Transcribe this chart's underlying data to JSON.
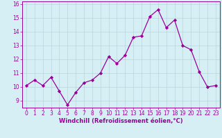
{
  "x": [
    0,
    1,
    2,
    3,
    4,
    5,
    6,
    7,
    8,
    9,
    10,
    11,
    12,
    13,
    14,
    15,
    16,
    17,
    18,
    19,
    20,
    21,
    22,
    23
  ],
  "y": [
    10.1,
    10.5,
    10.1,
    10.7,
    9.7,
    8.7,
    9.6,
    10.3,
    10.5,
    11.0,
    12.2,
    11.7,
    12.3,
    13.6,
    13.7,
    15.1,
    15.6,
    14.3,
    14.85,
    13.0,
    12.7,
    11.1,
    10.0,
    10.1
  ],
  "line_color": "#990099",
  "marker": "D",
  "marker_size": 2.2,
  "bg_color": "#d6eff5",
  "grid_color": "#b8d4da",
  "xlabel": "Windchill (Refroidissement éolien,°C)",
  "ylabel": "",
  "xlim": [
    -0.5,
    23.5
  ],
  "ylim": [
    8.5,
    16.2
  ],
  "yticks": [
    9,
    10,
    11,
    12,
    13,
    14,
    15,
    16
  ],
  "xticks": [
    0,
    1,
    2,
    3,
    4,
    5,
    6,
    7,
    8,
    9,
    10,
    11,
    12,
    13,
    14,
    15,
    16,
    17,
    18,
    19,
    20,
    21,
    22,
    23
  ],
  "tick_label_size": 5.5,
  "xlabel_size": 6.0,
  "linewidth": 0.9
}
